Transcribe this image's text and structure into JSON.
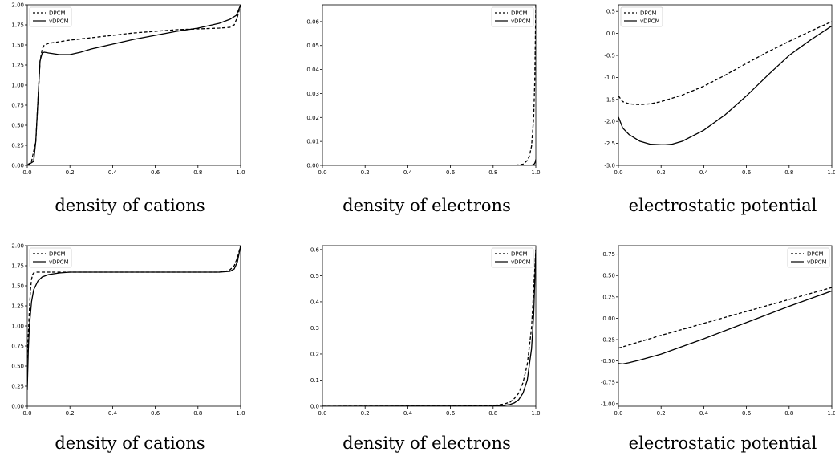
{
  "chart_data": [
    {
      "type": "line",
      "xlim": [
        0,
        1
      ],
      "ylim": [
        0,
        2.0
      ],
      "xticks": [
        "0.0",
        "0.2",
        "0.4",
        "0.6",
        "0.8",
        "1.0"
      ],
      "yticks": [
        "0.00",
        "0.25",
        "0.50",
        "0.75",
        "1.00",
        "1.25",
        "1.50",
        "1.75",
        "2.00"
      ],
      "legend": "top-left",
      "grid": false,
      "caption": "density of cations",
      "series": [
        {
          "name": "DPCM",
          "style": "dashed",
          "x": [
            0,
            0.02,
            0.04,
            0.05,
            0.06,
            0.07,
            0.08,
            0.1,
            0.15,
            0.2,
            0.3,
            0.4,
            0.5,
            0.6,
            0.7,
            0.8,
            0.9,
            0.95,
            0.97,
            0.985,
            1.0
          ],
          "y": [
            0,
            0.05,
            0.3,
            0.8,
            1.3,
            1.45,
            1.5,
            1.52,
            1.54,
            1.56,
            1.59,
            1.62,
            1.65,
            1.67,
            1.69,
            1.7,
            1.71,
            1.72,
            1.75,
            1.85,
            2.0
          ]
        },
        {
          "name": "vDPCM",
          "style": "solid",
          "x": [
            0,
            0.03,
            0.04,
            0.05,
            0.06,
            0.07,
            0.08,
            0.1,
            0.15,
            0.2,
            0.25,
            0.3,
            0.4,
            0.5,
            0.6,
            0.7,
            0.8,
            0.9,
            0.95,
            0.98,
            1.0
          ],
          "y": [
            0,
            0.05,
            0.3,
            0.8,
            1.3,
            1.4,
            1.41,
            1.4,
            1.38,
            1.38,
            1.41,
            1.45,
            1.51,
            1.57,
            1.62,
            1.67,
            1.71,
            1.77,
            1.82,
            1.87,
            2.0
          ]
        }
      ]
    },
    {
      "type": "line",
      "xlim": [
        0,
        1
      ],
      "ylim": [
        0,
        0.067
      ],
      "xticks": [
        "0.0",
        "0.2",
        "0.4",
        "0.6",
        "0.8",
        "1.0"
      ],
      "yticks": [
        "0.00",
        "0.01",
        "0.02",
        "0.03",
        "0.04",
        "0.05",
        "0.06"
      ],
      "legend": "top-right",
      "grid": false,
      "caption": "density of electrons",
      "series": [
        {
          "name": "DPCM",
          "style": "dashed",
          "x": [
            0,
            0.9,
            0.94,
            0.96,
            0.97,
            0.98,
            0.99,
            0.995,
            1.0
          ],
          "y": [
            0,
            0,
            0.0005,
            0.002,
            0.004,
            0.008,
            0.02,
            0.035,
            0.067
          ]
        },
        {
          "name": "vDPCM",
          "style": "solid",
          "x": [
            0,
            0.97,
            0.985,
            0.993,
            0.997,
            1.0
          ],
          "y": [
            0,
            0,
            0.0002,
            0.0006,
            0.0013,
            0.0025
          ]
        }
      ]
    },
    {
      "type": "line",
      "xlim": [
        0,
        1
      ],
      "ylim": [
        -3.0,
        0.65
      ],
      "xticks": [
        "0.0",
        "0.2",
        "0.4",
        "0.6",
        "0.8",
        "1.0"
      ],
      "yticks": [
        "-3.0",
        "-2.5",
        "-2.0",
        "-1.5",
        "-1.0",
        "-0.5",
        "0.0",
        "0.5"
      ],
      "legend": "top-left",
      "grid": false,
      "caption": "electrostatic potential",
      "series": [
        {
          "name": "DPCM",
          "style": "dashed",
          "x": [
            0,
            0.02,
            0.05,
            0.1,
            0.15,
            0.2,
            0.3,
            0.4,
            0.5,
            0.6,
            0.7,
            0.8,
            0.9,
            1.0
          ],
          "y": [
            -1.42,
            -1.55,
            -1.6,
            -1.62,
            -1.6,
            -1.55,
            -1.4,
            -1.2,
            -0.95,
            -0.68,
            -0.42,
            -0.18,
            0.05,
            0.27
          ]
        },
        {
          "name": "vDPCM",
          "style": "solid",
          "x": [
            0,
            0.02,
            0.05,
            0.1,
            0.15,
            0.2,
            0.22,
            0.25,
            0.3,
            0.4,
            0.5,
            0.6,
            0.7,
            0.8,
            0.9,
            1.0
          ],
          "y": [
            -1.9,
            -2.15,
            -2.3,
            -2.45,
            -2.52,
            -2.53,
            -2.53,
            -2.52,
            -2.45,
            -2.2,
            -1.85,
            -1.42,
            -0.95,
            -0.5,
            -0.15,
            0.17
          ]
        }
      ]
    },
    {
      "type": "line",
      "xlim": [
        0,
        1
      ],
      "ylim": [
        0,
        2.0
      ],
      "xticks": [
        "0.0",
        "0.2",
        "0.4",
        "0.6",
        "0.8",
        "1.0"
      ],
      "yticks": [
        "0.00",
        "0.25",
        "0.50",
        "0.75",
        "1.00",
        "1.25",
        "1.50",
        "1.75",
        "2.00"
      ],
      "legend": "top-left",
      "grid": false,
      "caption": "density of cations",
      "series": [
        {
          "name": "DPCM",
          "style": "dashed",
          "x": [
            0,
            0.005,
            0.01,
            0.015,
            0.02,
            0.025,
            0.03,
            0.04,
            0.05,
            0.1,
            0.5,
            0.9,
            0.93,
            0.95,
            0.97,
            0.985,
            1.0
          ],
          "y": [
            0.6,
            0.9,
            1.2,
            1.45,
            1.58,
            1.64,
            1.66,
            1.67,
            1.67,
            1.67,
            1.67,
            1.67,
            1.68,
            1.7,
            1.75,
            1.85,
            2.0
          ]
        },
        {
          "name": "vDPCM",
          "style": "solid",
          "x": [
            0,
            0.005,
            0.01,
            0.02,
            0.03,
            0.05,
            0.07,
            0.1,
            0.15,
            0.2,
            0.5,
            0.9,
            0.95,
            0.97,
            0.985,
            1.0
          ],
          "y": [
            0.2,
            0.7,
            1.0,
            1.3,
            1.45,
            1.56,
            1.61,
            1.64,
            1.66,
            1.67,
            1.67,
            1.67,
            1.68,
            1.71,
            1.8,
            2.0
          ]
        }
      ]
    },
    {
      "type": "line",
      "xlim": [
        0,
        1
      ],
      "ylim": [
        0,
        0.615
      ],
      "xticks": [
        "0.0",
        "0.2",
        "0.4",
        "0.6",
        "0.8",
        "1.0"
      ],
      "yticks": [
        "0.0",
        "0.1",
        "0.2",
        "0.3",
        "0.4",
        "0.5",
        "0.6"
      ],
      "legend": "top-right",
      "grid": false,
      "caption": "density of electrons",
      "series": [
        {
          "name": "DPCM",
          "style": "dashed",
          "x": [
            0,
            0.75,
            0.8,
            0.85,
            0.88,
            0.9,
            0.92,
            0.94,
            0.96,
            0.98,
            1.0
          ],
          "y": [
            0,
            0.001,
            0.003,
            0.008,
            0.016,
            0.03,
            0.05,
            0.09,
            0.16,
            0.3,
            0.6
          ]
        },
        {
          "name": "vDPCM",
          "style": "solid",
          "x": [
            0,
            0.8,
            0.85,
            0.88,
            0.9,
            0.92,
            0.94,
            0.96,
            0.98,
            0.99,
            1.0
          ],
          "y": [
            0,
            0.001,
            0.003,
            0.007,
            0.013,
            0.025,
            0.05,
            0.1,
            0.22,
            0.35,
            0.6
          ]
        }
      ]
    },
    {
      "type": "line",
      "xlim": [
        0,
        1
      ],
      "ylim": [
        -1.03,
        0.85
      ],
      "xticks": [
        "0.0",
        "0.2",
        "0.4",
        "0.6",
        "0.8",
        "1.0"
      ],
      "yticks": [
        "-1.00",
        "-0.75",
        "-0.50",
        "-0.25",
        "0.00",
        "0.25",
        "0.50",
        "0.75"
      ],
      "legend": "top-right",
      "grid": false,
      "caption": "electrostatic potential",
      "series": [
        {
          "name": "DPCM",
          "style": "dashed",
          "x": [
            0,
            0.2,
            0.4,
            0.6,
            0.8,
            1.0
          ],
          "y": [
            -0.35,
            -0.2,
            -0.06,
            0.08,
            0.22,
            0.36
          ]
        },
        {
          "name": "vDPCM",
          "style": "solid",
          "x": [
            0,
            0.02,
            0.05,
            0.1,
            0.2,
            0.4,
            0.6,
            0.8,
            1.0
          ],
          "y": [
            -0.53,
            -0.535,
            -0.52,
            -0.49,
            -0.42,
            -0.24,
            -0.05,
            0.14,
            0.32
          ]
        }
      ]
    }
  ]
}
